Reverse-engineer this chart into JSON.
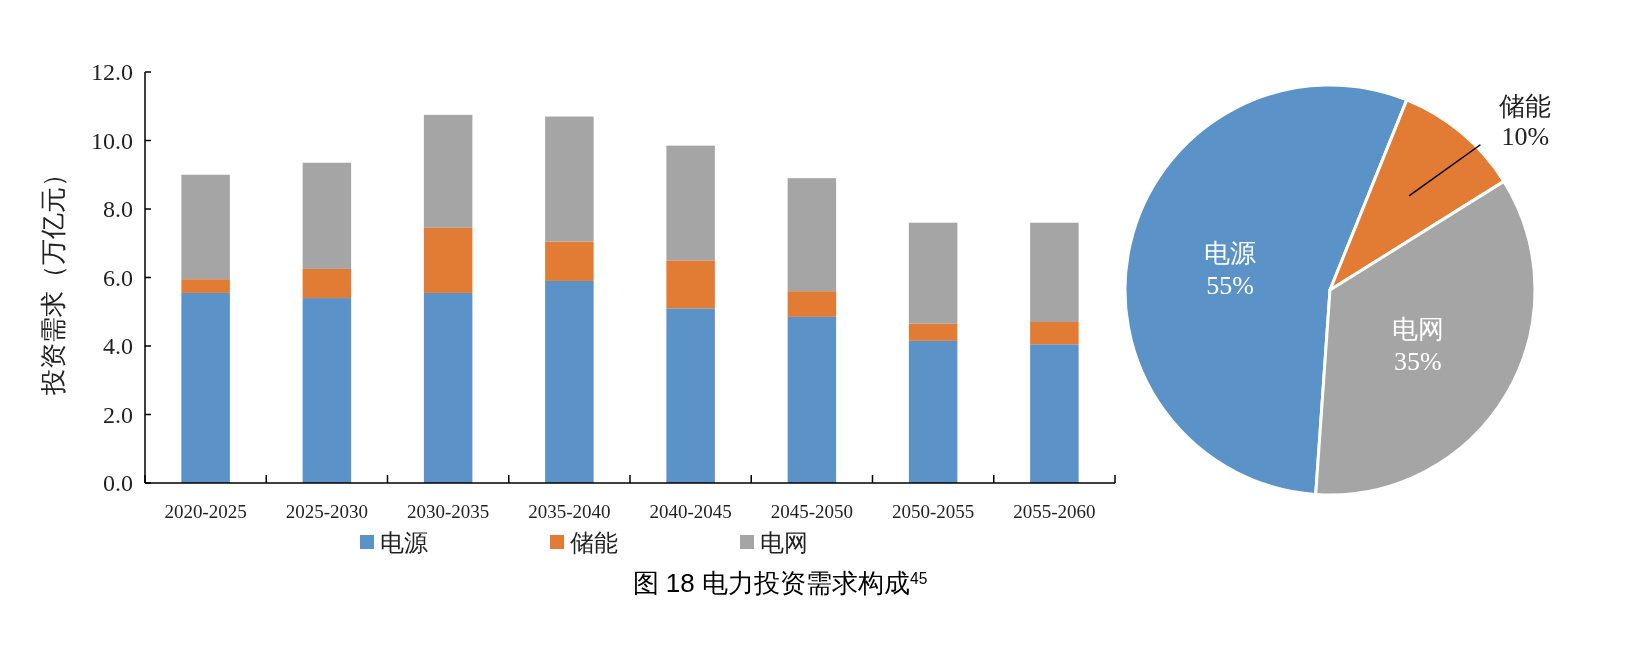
{
  "chart_data": [
    {
      "type": "bar",
      "stacked": true,
      "title": "图 18  电力投资需求构成$^{45}$",
      "ylabel": "投资需求（万亿元）",
      "categories": [
        "2020-2025",
        "2025-2030",
        "2030-2035",
        "2035-2040",
        "2040-2045",
        "2045-2050",
        "2050-2055",
        "2055-2060"
      ],
      "series": [
        {
          "name": "电源",
          "color": "#5b92c8",
          "values": [
            5.55,
            5.4,
            5.55,
            5.9,
            5.1,
            4.85,
            4.15,
            4.05
          ]
        },
        {
          "name": "储能",
          "color": "#e27b34",
          "values": [
            0.4,
            0.85,
            1.9,
            1.15,
            1.4,
            0.75,
            0.5,
            0.65
          ]
        },
        {
          "name": "电网",
          "color": "#a5a5a5",
          "values": [
            3.05,
            3.1,
            3.3,
            3.65,
            3.35,
            3.3,
            2.95,
            2.9
          ]
        }
      ],
      "ylim": [
        0,
        12
      ],
      "yticks": [
        {
          "value": 0,
          "label": "0.0"
        },
        {
          "value": 2,
          "label": "2.0"
        },
        {
          "value": 4,
          "label": "4.0"
        },
        {
          "value": 6,
          "label": "6.0"
        },
        {
          "value": 8,
          "label": "8.0"
        },
        {
          "value": 10,
          "label": "10.0"
        },
        {
          "value": 12,
          "label": "12.0"
        }
      ],
      "grid": false,
      "legend": "bottom"
    },
    {
      "type": "pie",
      "categories": [
        "电源",
        "储能",
        "电网"
      ],
      "values": [
        55,
        10,
        35
      ],
      "colors": [
        "#5b92c8",
        "#e27b34",
        "#a5a5a5"
      ],
      "value_labels": [
        "55%",
        "10%",
        "35%"
      ]
    }
  ]
}
